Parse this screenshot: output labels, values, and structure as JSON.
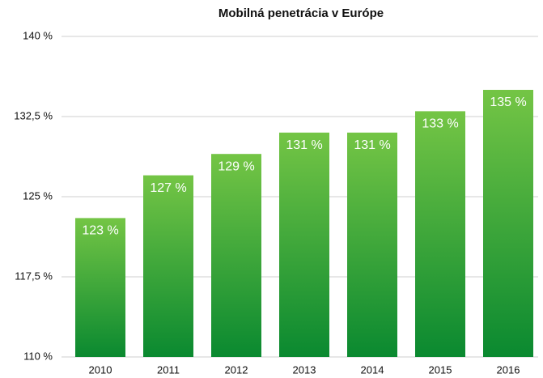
{
  "chart_data": {
    "type": "bar",
    "title": "Mobilná penetrácia v Európe",
    "categories": [
      "2010",
      "2011",
      "2012",
      "2013",
      "2014",
      "2015",
      "2016"
    ],
    "values": [
      123,
      127,
      129,
      131,
      131,
      133,
      135
    ],
    "value_labels": [
      "123 %",
      "127 %",
      "129 %",
      "131 %",
      "131 %",
      "133 %",
      "135 %"
    ],
    "colors": [
      "#74c545",
      "#0a8930"
    ],
    "ylim": [
      110,
      140
    ],
    "yticks": [
      {
        "value": 110,
        "label": "110 %"
      },
      {
        "value": 117.5,
        "label": "117,5 %"
      },
      {
        "value": 125,
        "label": "125 %"
      },
      {
        "value": 132.5,
        "label": "132,5 %"
      },
      {
        "value": 140,
        "label": "140 %"
      }
    ],
    "grid": true
  }
}
